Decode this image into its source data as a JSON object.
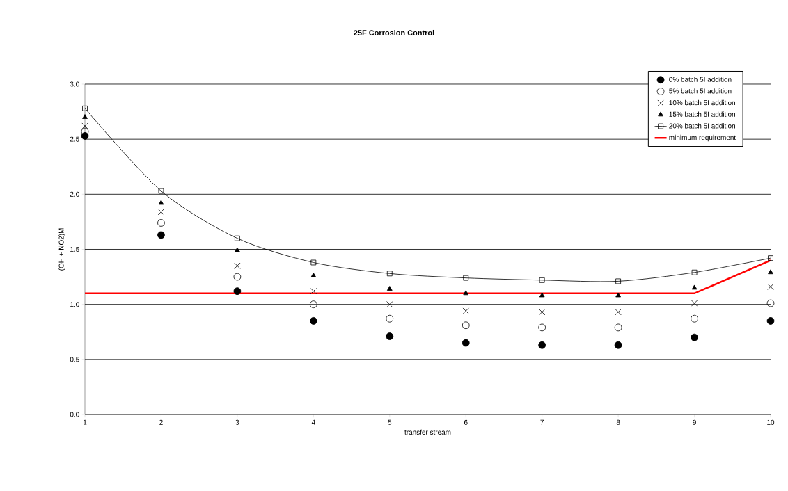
{
  "chart_data": {
    "type": "scatter",
    "title": "25F Corrosion Control",
    "xlabel": "transfer stream",
    "ylabel": "(OH + NO2)M",
    "x": [
      1,
      2,
      3,
      4,
      5,
      6,
      7,
      8,
      9,
      10
    ],
    "series": [
      {
        "name": "0% batch 5I addition",
        "marker": "circle",
        "color": "#000000",
        "values": [
          2.53,
          1.63,
          1.12,
          0.85,
          0.71,
          0.65,
          0.63,
          0.63,
          0.7,
          0.85
        ]
      },
      {
        "name": "5% batch 5I addition",
        "marker": "circle-open",
        "color": "#000000",
        "values": [
          2.57,
          1.74,
          1.25,
          1.0,
          0.87,
          0.81,
          0.79,
          0.79,
          0.87,
          1.01
        ]
      },
      {
        "name": "10% batch 5I addition",
        "marker": "cross",
        "color": "#000000",
        "values": [
          2.62,
          1.84,
          1.35,
          1.12,
          1.0,
          0.94,
          0.93,
          0.93,
          1.01,
          1.16
        ]
      },
      {
        "name": "15% batch 5I addition",
        "marker": "triangle",
        "color": "#000000",
        "values": [
          2.7,
          1.92,
          1.49,
          1.26,
          1.14,
          1.1,
          1.08,
          1.08,
          1.15,
          1.29
        ]
      },
      {
        "name": "20% batch 5I addition",
        "type": "line",
        "marker": "square-open",
        "color": "#000000",
        "values": [
          2.78,
          2.03,
          1.6,
          1.38,
          1.28,
          1.24,
          1.22,
          1.21,
          1.29,
          1.42
        ]
      },
      {
        "name": "minimum requirement",
        "type": "line",
        "marker": "none",
        "color": "#ff0000",
        "values": [
          1.1,
          1.1,
          1.1,
          1.1,
          1.1,
          1.1,
          1.1,
          1.1,
          1.1,
          1.4
        ]
      }
    ],
    "xlim": [
      1,
      10
    ],
    "xticks": [
      1,
      2,
      3,
      4,
      5,
      6,
      7,
      8,
      9,
      10
    ],
    "ylim": [
      0,
      3
    ],
    "yticks": [
      {
        "value": 0,
        "label": "0.0"
      },
      {
        "value": 0.5,
        "label": "0.5"
      },
      {
        "value": 1,
        "label": "1.0"
      },
      {
        "value": 1.5,
        "label": "1.5"
      },
      {
        "value": 2,
        "label": "2.0"
      },
      {
        "value": 2.5,
        "label": "2.5"
      },
      {
        "value": 3,
        "label": "3.0"
      }
    ],
    "grid": "y",
    "legend": "top right"
  }
}
